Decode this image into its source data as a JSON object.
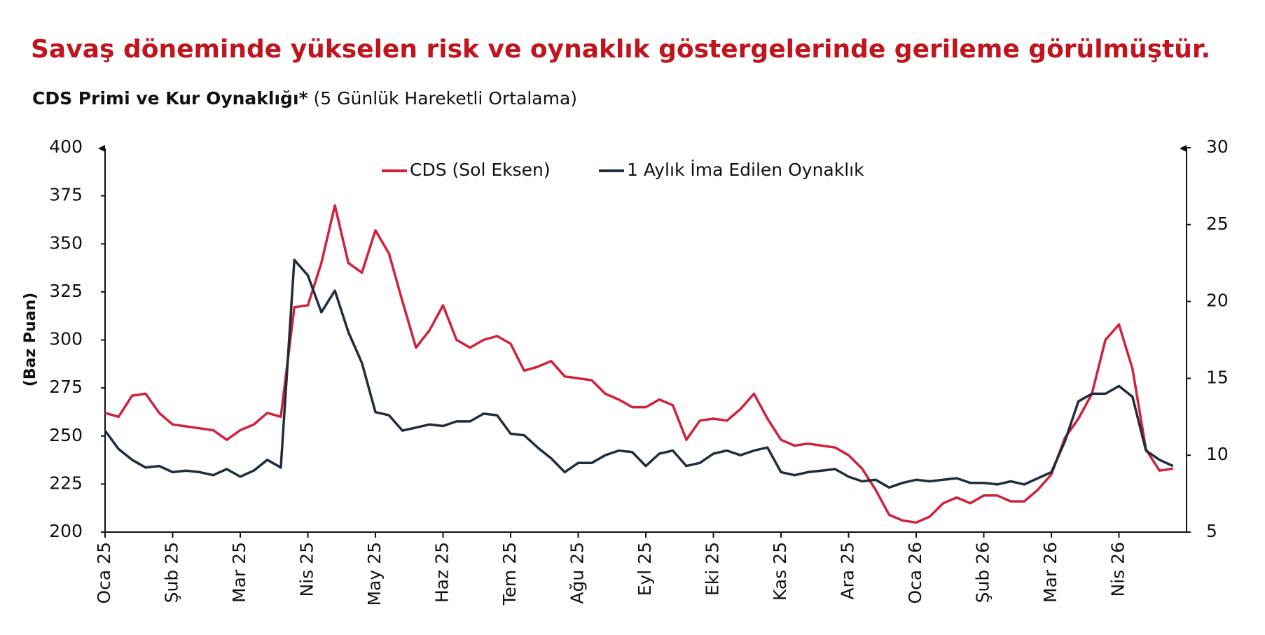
{
  "chart_data": {
    "type": "line",
    "title": "Savaş döneminde yükselen risk ve oynaklık göstergelerinde gerileme görülmüştür.",
    "subtitle_bold": "CDS Primi ve Kur Oynaklığı*",
    "subtitle": "(5 Günlük Hareketli Ortalama)",
    "y_label": "(Baz Puan)",
    "categories": [
      "Oca 25",
      null,
      null,
      null,
      null,
      "Şub 25",
      null,
      null,
      null,
      null,
      "Mar 25",
      null,
      null,
      null,
      null,
      "Nis 25",
      null,
      null,
      null,
      null,
      "May 25",
      null,
      null,
      null,
      null,
      "Haz 25",
      null,
      null,
      null,
      null,
      "Tem 25",
      null,
      null,
      null,
      null,
      "Ağu 25",
      null,
      null,
      null,
      null,
      "Eyl 25",
      null,
      null,
      null,
      null,
      "Eki 25",
      null,
      null,
      null,
      null,
      "Kas 25",
      null,
      null,
      null,
      null,
      "Ara 25",
      null,
      null,
      null,
      null,
      "Oca 26",
      null,
      null,
      null,
      null,
      "Şub 26",
      null,
      null,
      null,
      null,
      "Mar 26",
      null,
      null,
      null,
      null,
      "Nis 26",
      null,
      null,
      null,
      null
    ],
    "series": [
      {
        "name": "CDS (Sol Eksen)",
        "color": "#d0223a",
        "values": [
          262,
          260,
          271,
          272,
          262,
          256,
          255,
          254,
          253,
          248,
          253,
          256,
          262,
          260,
          317,
          318,
          340,
          370,
          340,
          335,
          357,
          345,
          320,
          296,
          305,
          318,
          300,
          296,
          300,
          302,
          298,
          284,
          286,
          289,
          281,
          280,
          279,
          272,
          269,
          265,
          265,
          269,
          266,
          248,
          258,
          259,
          258,
          264,
          272,
          259,
          248,
          245,
          246,
          245,
          244,
          240,
          233,
          222,
          209,
          206,
          205,
          208,
          215,
          218,
          215,
          219,
          219,
          216,
          216,
          222,
          230,
          249,
          259,
          272,
          300,
          308,
          285,
          243,
          232,
          233
        ]
      },
      {
        "name": "1 Aylık İma Edilen Oynaklık",
        "color": "#1f2d3d",
        "axis": "y2",
        "values": [
          11.6,
          10.4,
          9.7,
          9.2,
          9.3,
          8.9,
          9.0,
          8.9,
          8.7,
          9.1,
          8.6,
          9.0,
          9.7,
          9.2,
          22.7,
          21.7,
          19.3,
          20.7,
          18.0,
          16.0,
          12.8,
          12.6,
          11.6,
          11.8,
          12.0,
          11.9,
          12.2,
          12.2,
          12.7,
          12.6,
          11.4,
          11.3,
          10.5,
          9.8,
          8.9,
          9.5,
          9.5,
          10.0,
          10.3,
          10.2,
          9.3,
          10.1,
          10.3,
          9.3,
          9.5,
          10.1,
          10.3,
          10.0,
          10.3,
          10.5,
          8.9,
          8.7,
          8.9,
          9.0,
          9.1,
          8.6,
          8.3,
          8.4,
          7.9,
          8.2,
          8.4,
          8.3,
          8.4,
          8.5,
          8.2,
          8.2,
          8.1,
          8.3,
          8.1,
          8.5,
          8.9,
          10.9,
          13.5,
          14.0,
          14.0,
          14.5,
          13.8,
          10.3,
          9.7,
          9.3
        ]
      }
    ],
    "ylim": [
      200,
      400
    ],
    "yticks": [
      200,
      225,
      250,
      275,
      300,
      325,
      350,
      375,
      400
    ],
    "y2lim": [
      5,
      30
    ],
    "y2ticks": [
      5,
      10,
      15,
      20,
      25,
      30
    ]
  }
}
